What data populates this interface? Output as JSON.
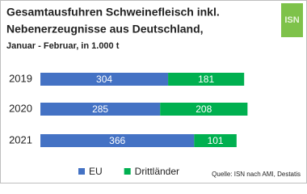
{
  "chart_data": {
    "type": "stacked_barh",
    "title": "Gesamtausfuhren Schweinefleisch inkl.",
    "title_line2": "Nebenerzeugnisse aus Deutschland,",
    "subtitle": "Januar - Februar, in 1.000 t",
    "logo": "ISN",
    "source": "Quelle: ISN nach AMI, Destatis",
    "categories": [
      "2019",
      "2020",
      "2021"
    ],
    "series": [
      {
        "name": "EU",
        "color": "#4472c4",
        "values": [
          304,
          285,
          366
        ]
      },
      {
        "name": "Drittländer",
        "color": "#00b050",
        "values": [
          181,
          208,
          101
        ]
      }
    ],
    "legend": "bottom"
  }
}
